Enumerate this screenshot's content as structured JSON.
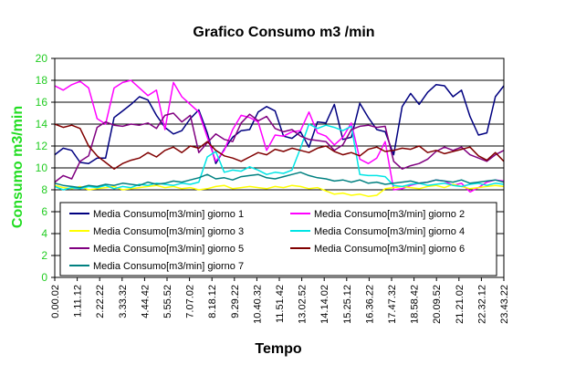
{
  "chart_data": {
    "type": "line",
    "title": "Grafico Consumo m3 /min",
    "xlabel": "Tempo",
    "ylabel": "Consumo m3/min",
    "ylim": [
      0,
      20
    ],
    "yticks": [
      0,
      2,
      4,
      6,
      8,
      10,
      12,
      14,
      16,
      18,
      20
    ],
    "grid": true,
    "legend_position": "bottom-inside",
    "x_tick_labels": [
      "0.00.02",
      "1.11.12",
      "2.22.22",
      "3.33.32",
      "4.44.42",
      "5.55.52",
      "7.07.02",
      "8.18.12",
      "9.29.22",
      "10.40.32",
      "11.51.42",
      "13.02.52",
      "14.14.02",
      "15.25.12",
      "16.36.22",
      "17.47.32",
      "18.58.42",
      "20.09.52",
      "21.21.02",
      "22.32.12",
      "23.43.22"
    ],
    "series": [
      {
        "name": "Media Consumo[m3/min] giorno 1",
        "color": "#000080",
        "values": [
          11.2,
          11.8,
          11.6,
          10.5,
          10.4,
          10.9,
          10.9,
          14.6,
          15.2,
          15.8,
          16.5,
          16.2,
          14.8,
          13.7,
          13.1,
          13.4,
          14.5,
          15.3,
          13.2,
          10.4,
          11.7,
          12.8,
          13.4,
          13.5,
          15.1,
          15.6,
          15.2,
          12.9,
          12.7,
          13.3,
          11.9,
          14.2,
          14.1,
          15.8,
          12.6,
          12.8,
          15.9,
          14.6,
          13.5,
          13.3,
          11.2,
          15.6,
          16.8,
          15.8,
          16.9,
          17.6,
          17.5,
          16.5,
          17.1,
          14.7,
          13.0,
          13.2,
          16.5,
          17.5
        ]
      },
      {
        "name": "Media Consumo[m3/min] giorno 2",
        "color": "#ff00ff",
        "values": [
          17.5,
          17.1,
          17.6,
          17.9,
          17.3,
          14.5,
          14.0,
          17.3,
          17.8,
          18.0,
          17.3,
          16.6,
          17.1,
          13.5,
          17.8,
          16.5,
          15.8,
          15.1,
          12.8,
          10.6,
          11.6,
          13.5,
          14.8,
          14.6,
          14.2,
          11.6,
          13.0,
          12.9,
          13.3,
          13.4,
          15.1,
          13.2,
          12.9,
          12.1,
          12.8,
          14.1,
          10.8,
          10.4,
          10.9,
          12.4,
          8.0,
          8.1,
          8.4,
          8.6,
          8.7,
          8.9,
          8.8,
          8.4,
          8.6,
          7.8,
          8.2,
          8.7,
          8.9,
          8.8
        ]
      },
      {
        "name": "Media Consumo[m3/min] giorno 3",
        "color": "#ffff00",
        "values": [
          8.4,
          8.2,
          8.1,
          8.3,
          8.0,
          8.1,
          8.2,
          8.3,
          8.0,
          8.1,
          8.2,
          8.3,
          8.4,
          8.2,
          8.3,
          8.1,
          8.2,
          8.0,
          8.1,
          8.3,
          8.4,
          8.1,
          8.2,
          8.3,
          8.2,
          8.1,
          8.3,
          8.2,
          8.4,
          8.3,
          8.1,
          8.2,
          7.9,
          7.6,
          7.7,
          7.5,
          7.6,
          7.4,
          7.5,
          8.1,
          8.2,
          8.3,
          8.2,
          8.1,
          8.3,
          8.4,
          8.2,
          8.5,
          8.3,
          8.1,
          8.2,
          8.3,
          8.4,
          8.3
        ]
      },
      {
        "name": "Media Consumo[m3/min] giorno 4",
        "color": "#00e5e5",
        "values": [
          8.3,
          8.0,
          8.2,
          8.1,
          8.3,
          8.2,
          8.4,
          8.1,
          8.3,
          8.2,
          8.5,
          8.4,
          8.6,
          8.5,
          8.4,
          8.6,
          8.5,
          8.7,
          11.0,
          11.5,
          9.6,
          9.8,
          9.7,
          10.1,
          9.8,
          9.4,
          9.6,
          9.5,
          9.8,
          11.8,
          14.0,
          13.6,
          13.9,
          13.7,
          13.4,
          13.8,
          9.4,
          9.3,
          9.3,
          9.2,
          8.4,
          8.3,
          8.5,
          8.6,
          8.4,
          8.5,
          8.6,
          8.4,
          8.3,
          8.5,
          8.6,
          8.4,
          8.6,
          8.5
        ]
      },
      {
        "name": "Media Consumo[m3/min] giorno 5",
        "color": "#800080",
        "values": [
          8.7,
          9.3,
          9.0,
          10.6,
          11.1,
          13.7,
          14.2,
          13.9,
          13.8,
          14.0,
          13.9,
          14.1,
          13.6,
          14.8,
          15.0,
          14.2,
          14.8,
          11.4,
          12.3,
          13.1,
          12.6,
          12.4,
          14.1,
          14.9,
          14.3,
          14.7,
          13.6,
          13.3,
          13.5,
          12.9,
          12.6,
          12.5,
          12.4,
          11.6,
          12.1,
          13.5,
          13.8,
          13.9,
          13.7,
          13.8,
          10.6,
          9.9,
          10.2,
          10.4,
          10.8,
          11.5,
          11.9,
          11.6,
          11.9,
          11.2,
          10.9,
          10.6,
          11.2,
          11.6
        ]
      },
      {
        "name": "Media Consumo[m3/min] giorno 6",
        "color": "#800000",
        "values": [
          14.0,
          13.7,
          13.9,
          13.6,
          12.0,
          11.1,
          10.5,
          9.9,
          10.4,
          10.7,
          10.9,
          11.4,
          11.0,
          11.6,
          11.9,
          11.4,
          12.0,
          11.8,
          12.4,
          11.6,
          11.1,
          10.9,
          10.6,
          11.0,
          11.4,
          11.2,
          11.7,
          11.5,
          11.8,
          11.6,
          11.4,
          11.8,
          12.0,
          11.5,
          11.2,
          11.4,
          11.1,
          11.7,
          11.9,
          11.5,
          11.6,
          11.8,
          11.7,
          12.0,
          11.4,
          11.6,
          11.3,
          11.5,
          11.7,
          11.9,
          11.1,
          10.7,
          11.4,
          10.6
        ]
      },
      {
        "name": "Media Consumo[m3/min] giorno 7",
        "color": "#008080",
        "values": [
          8.6,
          8.4,
          8.3,
          8.2,
          8.4,
          8.3,
          8.5,
          8.4,
          8.6,
          8.5,
          8.4,
          8.7,
          8.5,
          8.6,
          8.8,
          8.7,
          8.9,
          9.1,
          9.4,
          9.0,
          9.1,
          8.9,
          9.2,
          9.3,
          9.4,
          9.1,
          9.0,
          9.2,
          9.4,
          9.6,
          9.3,
          9.1,
          9.0,
          8.8,
          8.9,
          8.7,
          8.9,
          8.6,
          8.7,
          8.5,
          8.6,
          8.7,
          8.8,
          8.6,
          8.7,
          8.9,
          8.8,
          8.7,
          8.9,
          8.6,
          8.7,
          8.8,
          8.9,
          8.7
        ]
      }
    ]
  }
}
